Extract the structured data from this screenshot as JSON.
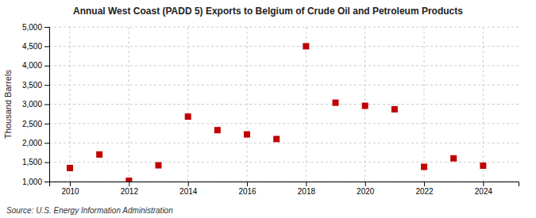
{
  "chart_data": {
    "type": "scatter",
    "title": "Annual West Coast (PADD 5) Exports to Belgium of Crude Oil and Petroleum Products",
    "y_label": "Thousand Barrels",
    "source": "Source: U.S. Energy Information Administration",
    "x": [
      2010,
      2011,
      2012,
      2013,
      2014,
      2015,
      2016,
      2017,
      2018,
      2019,
      2020,
      2021,
      2022,
      2023,
      2024
    ],
    "values": [
      1350,
      1700,
      1020,
      1420,
      2680,
      2330,
      2220,
      2100,
      4500,
      3040,
      2960,
      2870,
      1380,
      1600,
      1410
    ],
    "color": "#c00000",
    "marker": "square",
    "xlim": [
      2009.3,
      2025.2
    ],
    "xticks": [
      2010,
      2012,
      2014,
      2016,
      2018,
      2020,
      2022,
      2024
    ],
    "ylim": [
      1000,
      5000
    ],
    "yticks": [
      {
        "value": 1000,
        "label": "1,000"
      },
      {
        "value": 1500,
        "label": "1,500"
      },
      {
        "value": 2000,
        "label": "2,000"
      },
      {
        "value": 2500,
        "label": "2,500"
      },
      {
        "value": 3000,
        "label": "3,000"
      },
      {
        "value": 3500,
        "label": "3,500"
      },
      {
        "value": 4000,
        "label": "4,000"
      },
      {
        "value": 4500,
        "label": "4,500"
      },
      {
        "value": 5000,
        "label": "5,000"
      }
    ],
    "grid": true
  }
}
